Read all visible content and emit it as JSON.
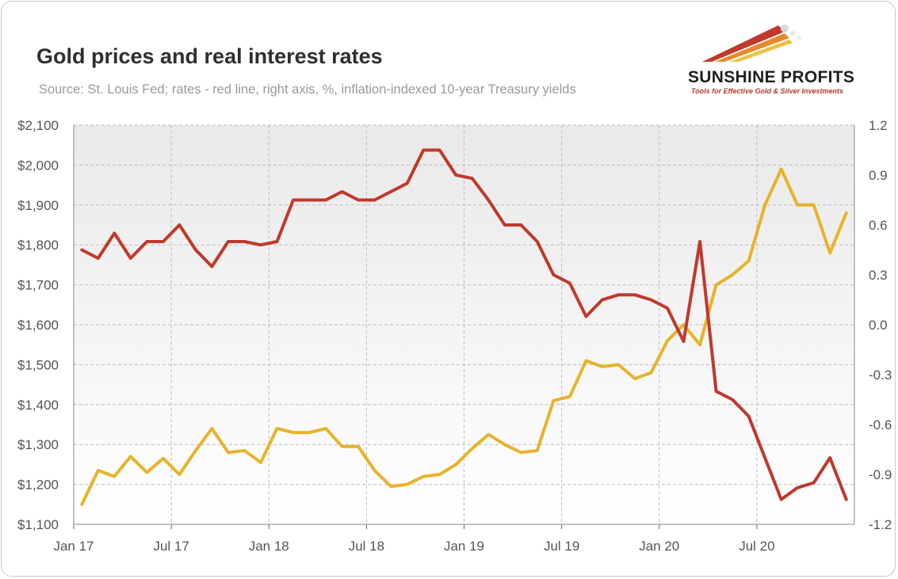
{
  "header": {
    "title": "Gold prices and real interest rates",
    "subtitle": "Source: St. Louis Fed; rates - red line, right axis, %, inflation-indexed 10-year Treasury yields"
  },
  "logo": {
    "name": "SUNSHINE PROFITS",
    "tagline": "Tools for Effective Gold & Silver Investments"
  },
  "chart_data": {
    "type": "line",
    "x_ticks": [
      "Jan 17",
      "Jul 17",
      "Jan 18",
      "Jul 18",
      "Jan 19",
      "Jul 19",
      "Jan 20",
      "Jul 20"
    ],
    "y_left": {
      "range": [
        1100,
        2100
      ],
      "ticks": [
        "$1,100",
        "$1,200",
        "$1,300",
        "$1,400",
        "$1,500",
        "$1,600",
        "$1,700",
        "$1,800",
        "$1,900",
        "$2,000",
        "$2,100"
      ]
    },
    "y_right": {
      "range": [
        -1.2,
        1.2
      ],
      "ticks": [
        "-1.2",
        "-0.9",
        "-0.6",
        "-0.3",
        "0.0",
        "0.3",
        "0.6",
        "0.9",
        "1.2"
      ]
    },
    "x_range": [
      "Jan 17",
      "Dec 20"
    ],
    "grid": true,
    "series": [
      {
        "axis": "left",
        "color": "#E8B22A",
        "points": [
          [
            "Jan 17",
            1150
          ],
          [
            "Feb 17",
            1235
          ],
          [
            "Mar 17",
            1220
          ],
          [
            "Apr 17",
            1270
          ],
          [
            "May 17",
            1230
          ],
          [
            "Jun 17",
            1265
          ],
          [
            "Jul 17",
            1225
          ],
          [
            "Aug 17",
            1285
          ],
          [
            "Sep 17",
            1340
          ],
          [
            "Oct 17",
            1280
          ],
          [
            "Nov 17",
            1285
          ],
          [
            "Dec 17",
            1255
          ],
          [
            "Jan 18",
            1340
          ],
          [
            "Feb 18",
            1330
          ],
          [
            "Mar 18",
            1330
          ],
          [
            "Apr 18",
            1340
          ],
          [
            "May 18",
            1295
          ],
          [
            "Jun 18",
            1295
          ],
          [
            "Jul 18",
            1235
          ],
          [
            "Aug 18",
            1195
          ],
          [
            "Sep 18",
            1200
          ],
          [
            "Oct 18",
            1220
          ],
          [
            "Nov 18",
            1225
          ],
          [
            "Dec 18",
            1250
          ],
          [
            "Jan 19",
            1290
          ],
          [
            "Feb 19",
            1325
          ],
          [
            "Mar 19",
            1300
          ],
          [
            "Apr 19",
            1280
          ],
          [
            "May 19",
            1285
          ],
          [
            "Jun 19",
            1410
          ],
          [
            "Jul 19",
            1420
          ],
          [
            "Aug 19",
            1510
          ],
          [
            "Sep 19",
            1495
          ],
          [
            "Oct 19",
            1500
          ],
          [
            "Nov 19",
            1465
          ],
          [
            "Dec 19",
            1480
          ],
          [
            "Jan 20",
            1560
          ],
          [
            "Feb 20",
            1600
          ],
          [
            "Mar 20",
            1550
          ],
          [
            "Apr 20",
            1700
          ],
          [
            "May 20",
            1725
          ],
          [
            "Jun 20",
            1760
          ],
          [
            "Jul 20",
            1900
          ],
          [
            "Aug 20",
            1990
          ],
          [
            "Sep 20",
            1900
          ],
          [
            "Oct 20",
            1900
          ],
          [
            "Nov 20",
            1780
          ],
          [
            "Dec 20",
            1880
          ]
        ]
      },
      {
        "axis": "right",
        "color": "#C0392B",
        "points": [
          [
            "Jan 17",
            0.45
          ],
          [
            "Feb 17",
            0.4
          ],
          [
            "Mar 17",
            0.55
          ],
          [
            "Apr 17",
            0.4
          ],
          [
            "May 17",
            0.5
          ],
          [
            "Jun 17",
            0.5
          ],
          [
            "Jul 17",
            0.6
          ],
          [
            "Aug 17",
            0.45
          ],
          [
            "Sep 17",
            0.35
          ],
          [
            "Oct 17",
            0.5
          ],
          [
            "Nov 17",
            0.5
          ],
          [
            "Dec 17",
            0.48
          ],
          [
            "Jan 18",
            0.5
          ],
          [
            "Feb 18",
            0.75
          ],
          [
            "Mar 18",
            0.75
          ],
          [
            "Apr 18",
            0.75
          ],
          [
            "May 18",
            0.8
          ],
          [
            "Jun 18",
            0.75
          ],
          [
            "Jul 18",
            0.75
          ],
          [
            "Aug 18",
            0.8
          ],
          [
            "Sep 18",
            0.85
          ],
          [
            "Oct 18",
            1.05
          ],
          [
            "Nov 18",
            1.05
          ],
          [
            "Dec 18",
            0.9
          ],
          [
            "Jan 19",
            0.88
          ],
          [
            "Feb 19",
            0.75
          ],
          [
            "Mar 19",
            0.6
          ],
          [
            "Apr 19",
            0.6
          ],
          [
            "May 19",
            0.5
          ],
          [
            "Jun 19",
            0.3
          ],
          [
            "Jul 19",
            0.25
          ],
          [
            "Aug 19",
            0.05
          ],
          [
            "Sep 19",
            0.15
          ],
          [
            "Oct 19",
            0.18
          ],
          [
            "Nov 19",
            0.18
          ],
          [
            "Dec 19",
            0.15
          ],
          [
            "Jan 20",
            0.1
          ],
          [
            "Feb 20",
            -0.1
          ],
          [
            "Mar 20",
            0.5
          ],
          [
            "Apr 20",
            -0.4
          ],
          [
            "May 20",
            -0.45
          ],
          [
            "Jun 20",
            -0.55
          ],
          [
            "Jul 20",
            -0.8
          ],
          [
            "Aug 20",
            -1.05
          ],
          [
            "Sep 20",
            -0.98
          ],
          [
            "Oct 20",
            -0.95
          ],
          [
            "Nov 20",
            -0.8
          ],
          [
            "Dec 20",
            -1.05
          ]
        ]
      }
    ]
  }
}
